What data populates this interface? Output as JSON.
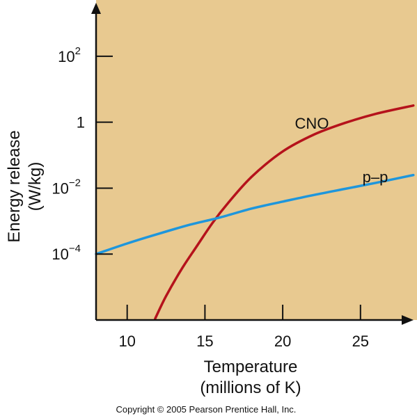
{
  "chart_data": {
    "type": "line",
    "title": "",
    "xlabel_line1": "Temperature",
    "xlabel_line2": "(millions of K)",
    "ylabel_line1": "Energy release",
    "ylabel_line2": "(W/kg)",
    "x_scale": "linear",
    "y_scale": "log",
    "xlim": [
      8,
      28.5
    ],
    "ylim": [
      1e-06,
      4000
    ],
    "x_ticks": [
      10,
      15,
      20,
      25
    ],
    "x_tick_labels": [
      "10",
      "15",
      "20",
      "25"
    ],
    "y_ticks": [
      0.0001,
      0.01,
      1,
      100
    ],
    "y_tick_labels": [
      {
        "base": "10",
        "exp": "−4"
      },
      {
        "base": "10",
        "exp": "−2"
      },
      {
        "base": "1",
        "exp": ""
      },
      {
        "base": "10",
        "exp": "2"
      }
    ],
    "grid": false,
    "background_color": "#e8c990",
    "series": [
      {
        "name": "CNO",
        "color": "#b5121b",
        "x": [
          11.8,
          12.5,
          13.5,
          14.5,
          15.5,
          16.5,
          18,
          20,
          22,
          24,
          26,
          28.4
        ],
        "y": [
          1.1e-06,
          5.3e-06,
          3.5e-05,
          0.00018,
          0.0009,
          0.0036,
          0.022,
          0.13,
          0.42,
          0.95,
          1.8,
          3.2
        ]
      },
      {
        "name": "p–p",
        "color": "#1e96dc",
        "x": [
          8,
          10,
          12,
          14,
          16,
          18,
          20,
          22,
          24,
          26,
          28.4
        ],
        "y": [
          0.0001,
          0.00021,
          0.00041,
          0.00077,
          0.0013,
          0.0024,
          0.0039,
          0.0062,
          0.0095,
          0.0145,
          0.025
        ]
      }
    ]
  },
  "copyright": "Copyright © 2005 Pearson Prentice Hall, Inc."
}
